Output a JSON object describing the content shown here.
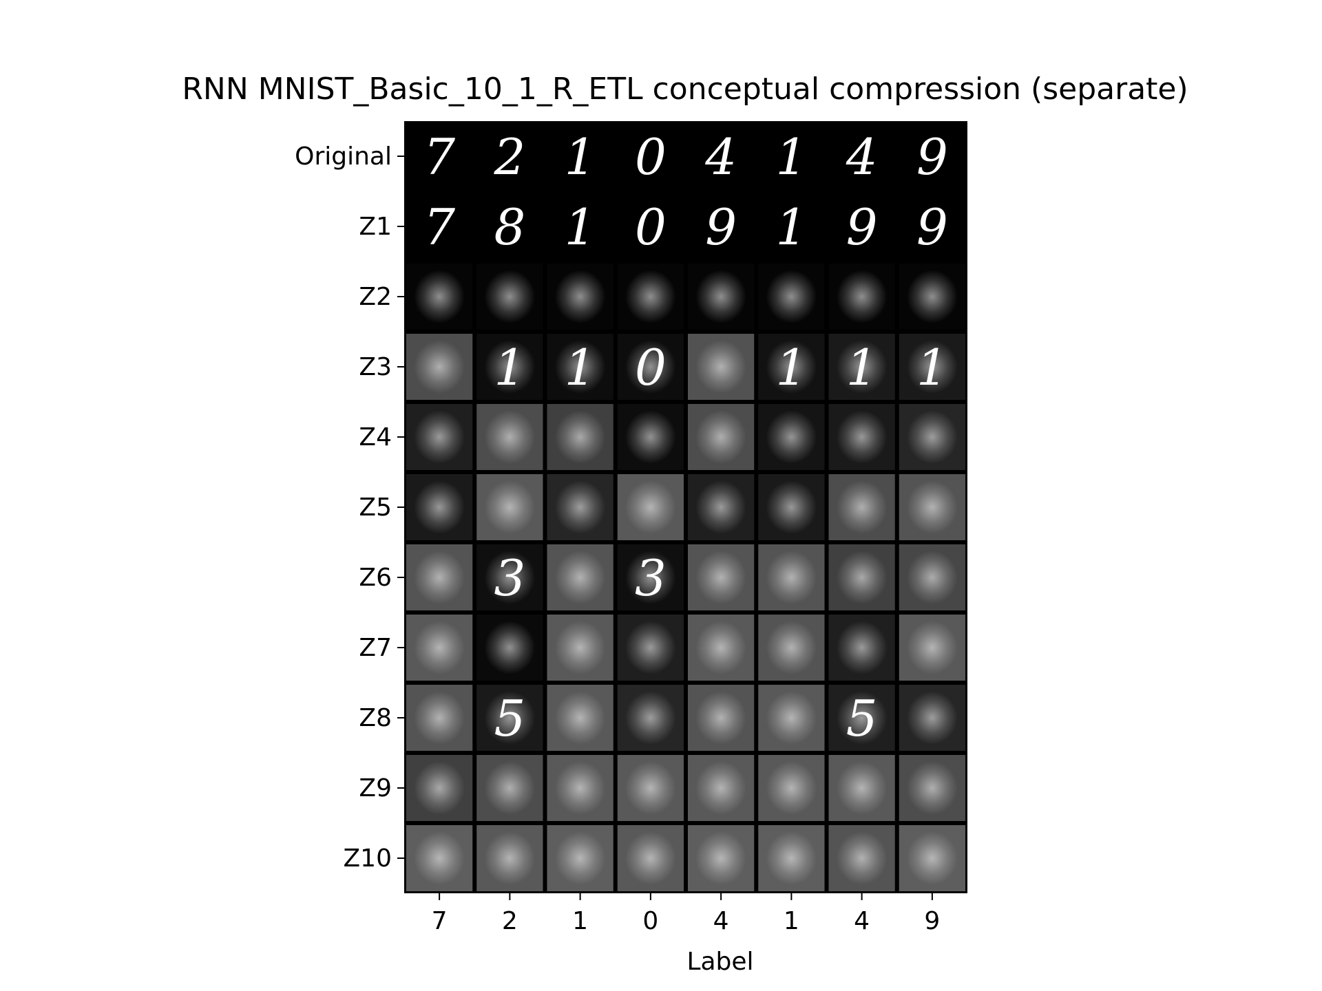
{
  "chart_data": {
    "type": "image-grid",
    "title": "RNN MNIST_Basic_10_1_R_ETL conceptual compression (separate)",
    "xlabel": "Label",
    "ylabel": "",
    "row_labels": [
      "Original",
      "Z1",
      "Z2",
      "Z3",
      "Z4",
      "Z5",
      "Z6",
      "Z7",
      "Z8",
      "Z9",
      "Z10"
    ],
    "column_labels": [
      "7",
      "2",
      "1",
      "0",
      "4",
      "1",
      "4",
      "9"
    ],
    "cell_digits": [
      [
        "7",
        "2",
        "1",
        "0",
        "4",
        "1",
        "4",
        "9"
      ],
      [
        "7",
        "8",
        "1",
        "0",
        "9",
        "1",
        "9",
        "9"
      ],
      [
        "",
        "",
        "",
        "",
        "",
        "",
        "",
        ""
      ],
      [
        "",
        "1",
        "1",
        "0",
        "",
        "1",
        "1",
        "1"
      ],
      [
        "",
        "",
        "",
        "",
        "",
        "",
        "",
        ""
      ],
      [
        "",
        "",
        "",
        "",
        "",
        "",
        "",
        ""
      ],
      [
        "",
        "3",
        "",
        "3",
        "",
        "",
        "",
        ""
      ],
      [
        "",
        "",
        "",
        "",
        "",
        "",
        "",
        ""
      ],
      [
        "",
        "5",
        "",
        "",
        "",
        "",
        "5",
        ""
      ],
      [
        "",
        "",
        "",
        "",
        "",
        "",
        "",
        ""
      ],
      [
        "",
        "",
        "",
        "",
        "",
        "",
        "",
        ""
      ]
    ],
    "cell_background": [
      [
        0,
        0,
        0,
        0,
        0,
        0,
        0,
        0
      ],
      [
        0,
        0,
        0,
        0,
        0,
        0,
        0,
        0
      ],
      [
        0.02,
        0.02,
        0.02,
        0.02,
        0.02,
        0.02,
        0.02,
        0.02
      ],
      [
        0.3,
        0.05,
        0.05,
        0.05,
        0.32,
        0.07,
        0.1,
        0.1
      ],
      [
        0.12,
        0.3,
        0.25,
        0.05,
        0.3,
        0.08,
        0.1,
        0.15
      ],
      [
        0.1,
        0.35,
        0.15,
        0.35,
        0.12,
        0.1,
        0.3,
        0.33
      ],
      [
        0.33,
        0.06,
        0.33,
        0.06,
        0.33,
        0.33,
        0.25,
        0.28
      ],
      [
        0.35,
        0.04,
        0.35,
        0.12,
        0.35,
        0.33,
        0.12,
        0.35
      ],
      [
        0.33,
        0.1,
        0.35,
        0.15,
        0.33,
        0.35,
        0.12,
        0.15
      ],
      [
        0.25,
        0.3,
        0.35,
        0.35,
        0.35,
        0.35,
        0.35,
        0.3
      ],
      [
        0.37,
        0.35,
        0.37,
        0.35,
        0.37,
        0.37,
        0.33,
        0.37
      ]
    ],
    "colormap": "gray",
    "grid": false
  }
}
